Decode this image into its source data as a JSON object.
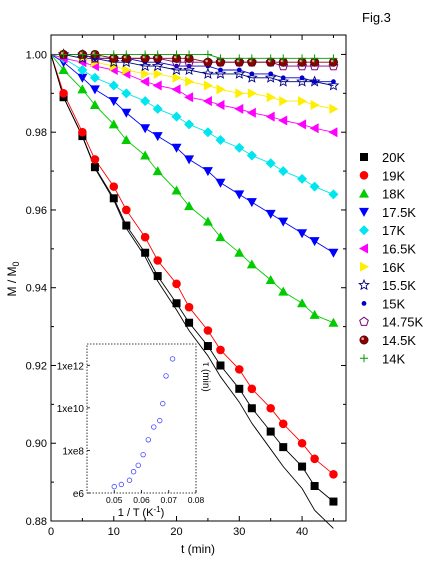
{
  "figure_label": "Fig.3",
  "chart_data": [
    {
      "type": "scatter",
      "title": "",
      "xlabel": "t (min)",
      "ylabel": "M / M",
      "ylabel_sub": "0",
      "xlim": [
        0,
        47
      ],
      "ylim": [
        0.88,
        1.005
      ],
      "x_ticks": [
        0,
        10,
        20,
        30,
        40
      ],
      "y_ticks": [
        0.88,
        0.9,
        0.92,
        0.94,
        0.96,
        0.98,
        1.0
      ],
      "y_tick_labels": [
        "0.88",
        "0.90",
        "0.92",
        "0.94",
        "0.96",
        "0.98",
        "1.00"
      ],
      "legend_position": "right",
      "fit_lines": true,
      "series": [
        {
          "name": "20K",
          "marker": "square",
          "color": "#000000",
          "x": [
            2,
            5,
            7,
            10,
            12,
            15,
            17,
            20,
            22,
            25,
            27,
            30,
            32,
            35,
            37,
            40,
            42,
            45
          ],
          "y": [
            0.989,
            0.979,
            0.971,
            0.963,
            0.956,
            0.949,
            0.943,
            0.936,
            0.931,
            0.925,
            0.92,
            0.914,
            0.909,
            0.903,
            0.899,
            0.894,
            0.889,
            0.885
          ]
        },
        {
          "name": "19K",
          "marker": "circle",
          "color": "#ff0000",
          "x": [
            2,
            5,
            7,
            10,
            12,
            15,
            17,
            20,
            22,
            25,
            27,
            30,
            32,
            35,
            37,
            40,
            42,
            45
          ],
          "y": [
            0.99,
            0.98,
            0.973,
            0.966,
            0.96,
            0.953,
            0.947,
            0.941,
            0.935,
            0.929,
            0.924,
            0.919,
            0.914,
            0.909,
            0.905,
            0.9,
            0.896,
            0.892
          ]
        },
        {
          "name": "18K",
          "marker": "triangle-up",
          "color": "#00cc00",
          "x": [
            2,
            5,
            7,
            10,
            12,
            15,
            17,
            20,
            22,
            25,
            27,
            30,
            32,
            35,
            37,
            40,
            42,
            45
          ],
          "y": [
            0.996,
            0.991,
            0.987,
            0.982,
            0.978,
            0.974,
            0.97,
            0.965,
            0.961,
            0.957,
            0.953,
            0.949,
            0.946,
            0.942,
            0.939,
            0.936,
            0.933,
            0.931
          ]
        },
        {
          "name": "17.5K",
          "marker": "triangle-down",
          "color": "#0000ff",
          "x": [
            2,
            5,
            7,
            10,
            12,
            15,
            17,
            20,
            22,
            25,
            27,
            30,
            32,
            35,
            37,
            40,
            42,
            45
          ],
          "y": [
            0.998,
            0.994,
            0.991,
            0.988,
            0.985,
            0.981,
            0.979,
            0.976,
            0.973,
            0.97,
            0.967,
            0.964,
            0.962,
            0.959,
            0.957,
            0.954,
            0.952,
            0.949
          ]
        },
        {
          "name": "17K",
          "marker": "diamond",
          "color": "#00e5ee",
          "x": [
            2,
            5,
            7,
            10,
            12,
            15,
            17,
            20,
            22,
            25,
            27,
            30,
            32,
            35,
            37,
            40,
            42,
            45
          ],
          "y": [
            0.999,
            0.996,
            0.994,
            0.992,
            0.99,
            0.988,
            0.986,
            0.984,
            0.982,
            0.98,
            0.978,
            0.976,
            0.974,
            0.972,
            0.97,
            0.968,
            0.966,
            0.964
          ]
        },
        {
          "name": "16.5K",
          "marker": "triangle-left",
          "color": "#ff00ff",
          "x": [
            2,
            5,
            7,
            10,
            12,
            15,
            17,
            20,
            22,
            25,
            27,
            30,
            32,
            35,
            37,
            40,
            42,
            45
          ],
          "y": [
            0.999,
            0.998,
            0.997,
            0.996,
            0.995,
            0.993,
            0.992,
            0.991,
            0.989,
            0.988,
            0.987,
            0.986,
            0.985,
            0.984,
            0.983,
            0.982,
            0.981,
            0.98
          ]
        },
        {
          "name": "16K",
          "marker": "triangle-right",
          "color": "#ffee00",
          "x": [
            2,
            5,
            7,
            10,
            12,
            15,
            17,
            20,
            22,
            25,
            27,
            30,
            32,
            35,
            37,
            40,
            42,
            45
          ],
          "y": [
            1.0,
            0.999,
            0.998,
            0.997,
            0.996,
            0.995,
            0.995,
            0.994,
            0.993,
            0.992,
            0.991,
            0.99,
            0.99,
            0.989,
            0.988,
            0.988,
            0.987,
            0.986
          ]
        },
        {
          "name": "15.5K",
          "marker": "star-open",
          "color": "#000080",
          "x": [
            2,
            5,
            7,
            10,
            12,
            15,
            17,
            20,
            22,
            25,
            27,
            30,
            32,
            35,
            37,
            40,
            42,
            45
          ],
          "y": [
            1.0,
            0.999,
            0.999,
            0.998,
            0.998,
            0.997,
            0.997,
            0.996,
            0.996,
            0.995,
            0.995,
            0.995,
            0.994,
            0.994,
            0.993,
            0.993,
            0.993,
            0.992
          ]
        },
        {
          "name": "15K",
          "marker": "dot",
          "color": "#0000cc",
          "x": [
            2,
            5,
            7,
            10,
            12,
            15,
            17,
            20,
            22,
            25,
            27,
            30,
            32,
            35,
            37,
            40,
            42,
            45
          ],
          "y": [
            1.0,
            1.0,
            0.999,
            0.999,
            0.999,
            0.998,
            0.998,
            0.997,
            0.997,
            0.997,
            0.996,
            0.996,
            0.995,
            0.995,
            0.994,
            0.994,
            0.993,
            0.993
          ]
        },
        {
          "name": "14.75K",
          "marker": "pentagon-open",
          "color": "#800080",
          "x": [
            2,
            5,
            7,
            10,
            12,
            15,
            17,
            20,
            22,
            25,
            27,
            30,
            32,
            35,
            37,
            40,
            42,
            45
          ],
          "y": [
            1.0,
            1.0,
            0.999,
            0.999,
            0.999,
            0.999,
            0.999,
            0.998,
            0.998,
            0.998,
            0.998,
            0.998,
            0.998,
            0.998,
            0.997,
            0.997,
            0.997,
            0.997
          ]
        },
        {
          "name": "14.5K",
          "marker": "ball",
          "color": "#8b0000",
          "x": [
            2,
            5,
            7,
            10,
            12,
            15,
            17,
            20,
            22,
            25,
            27,
            30,
            32,
            35,
            37,
            40,
            42,
            45
          ],
          "y": [
            1.0,
            1.0,
            1.0,
            0.999,
            0.999,
            0.999,
            0.999,
            0.999,
            0.999,
            0.998,
            0.998,
            0.998,
            0.998,
            0.998,
            0.998,
            0.998,
            0.998,
            0.998
          ]
        },
        {
          "name": "14K",
          "marker": "plus",
          "color": "#009900",
          "x": [
            2,
            5,
            7,
            10,
            12,
            15,
            17,
            20,
            22,
            25,
            27,
            30,
            32,
            35,
            37,
            40,
            42,
            45
          ],
          "y": [
            1.0,
            1.0,
            1.0,
            1.0,
            1.0,
            1.0,
            1.0,
            1.0,
            1.0,
            1.0,
            0.999,
            0.999,
            0.999,
            0.999,
            0.999,
            0.999,
            0.999,
            0.999
          ]
        }
      ]
    },
    {
      "type": "scatter",
      "title": "",
      "xlabel": "1 / T (K",
      "xlabel_sup": "-1",
      "xlabel_tail": ")",
      "ylabel": "τ (min)",
      "xlim": [
        0.04,
        0.08
      ],
      "ylim_log_e": [
        6,
        13
      ],
      "x_ticks": [
        0.05,
        0.06,
        0.07,
        0.08
      ],
      "x_tick_labels": [
        "0.05",
        "0.06",
        "0.07",
        "0.08"
      ],
      "y_ticks_log_e": [
        6,
        8,
        10,
        12
      ],
      "y_tick_labels": [
        "e6",
        "1xe8",
        "1xe10",
        "1xe12"
      ],
      "series": [
        {
          "name": "",
          "marker": "circle-open",
          "color": "#4a4aff",
          "x": [
            0.05,
            0.0526,
            0.0556,
            0.0571,
            0.0588,
            0.0606,
            0.0625,
            0.0645,
            0.0667,
            0.0678,
            0.069,
            0.0714
          ],
          "y_log_e": [
            6.3,
            6.4,
            6.6,
            7.0,
            7.3,
            7.8,
            8.5,
            9.1,
            9.4,
            10.2,
            11.5,
            12.3
          ]
        }
      ]
    }
  ]
}
